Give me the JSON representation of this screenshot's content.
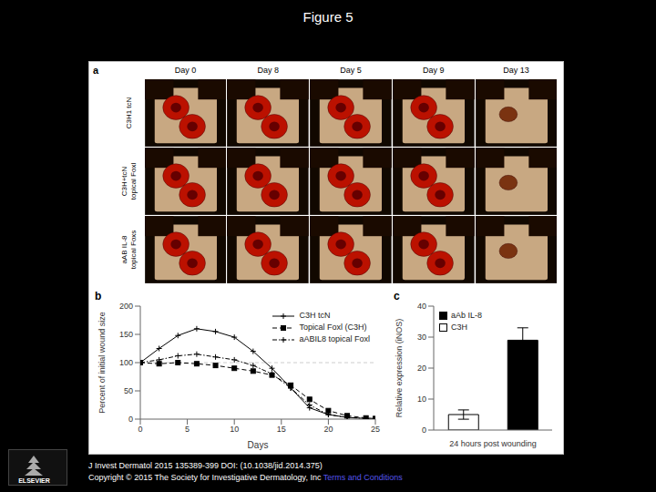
{
  "chart_data": [
    {
      "type": "image_grid",
      "title": "Figure 5",
      "categories": [
        "Day 0",
        "Day 8",
        "Day 5",
        "Day 9",
        "Day 13"
      ],
      "annotations": [
        "a",
        "C3H1 tcN",
        "C3H+tcN\ntopical Foxl",
        "aAB IL-8\ntopical Foxs",
        "J Invest Dermatol 2015 135389-399 DOI: (10.1038/jid.2014.375)",
        "Copyright © 2015 The Society for Investigative Dermatology, Inc ",
        "Terms and Conditions",
        "ELSEVIER"
      ]
    },
    {
      "type": "line",
      "annotations": [
        "b"
      ],
      "x": [
        0,
        2,
        4,
        6,
        8,
        10,
        12,
        14,
        16,
        18,
        20,
        22,
        24,
        25
      ],
      "series": [
        {
          "name": "C3H tcN",
          "color": "black",
          "marker": "plus",
          "line_style": "solid",
          "values": [
            100,
            125,
            148,
            160,
            155,
            145,
            120,
            90,
            55,
            20,
            8,
            3,
            1,
            0
          ]
        },
        {
          "name": "Topical Foxl (C3H)",
          "color": "black",
          "marker": "square",
          "line_style": "dashed",
          "values": [
            100,
            98,
            100,
            98,
            95,
            90,
            85,
            78,
            60,
            35,
            15,
            6,
            2,
            1
          ]
        },
        {
          "name": "aABIL8 topical Foxl",
          "color": "black",
          "marker": "plus",
          "line_style": "dashdot",
          "values": [
            100,
            105,
            112,
            115,
            110,
            105,
            95,
            80,
            55,
            25,
            8,
            3,
            1,
            0
          ]
        }
      ],
      "hlines": [
        100
      ],
      "xlabel": "Days",
      "ylabel": "Percent of initial wound size",
      "xlim": [
        0,
        25
      ],
      "xticks": [
        0,
        5,
        10,
        15,
        20,
        25
      ],
      "ylim": [
        0,
        200
      ],
      "yticks": [
        0,
        50,
        100,
        150,
        200
      ],
      "grid": false,
      "legend": "upper right"
    },
    {
      "type": "bar",
      "annotations": [
        "c"
      ],
      "categories": [
        null,
        null
      ],
      "series": [
        {
          "name": "aAb IL-8",
          "color": "black",
          "values": [
            null,
            29
          ],
          "error": [
            null,
            4.0
          ]
        },
        {
          "name": "C3H",
          "color": "white",
          "values": [
            5,
            null
          ],
          "error": [
            1.5,
            null
          ]
        }
      ],
      "xlabel": "24 hours post wounding",
      "ylabel": "Relative expression (iNOS)",
      "ylim": [
        0,
        40
      ],
      "yticks": [
        0,
        10,
        20,
        30,
        40
      ],
      "grid": false,
      "legend": "upper left",
      "tick_labels": "y"
    }
  ]
}
